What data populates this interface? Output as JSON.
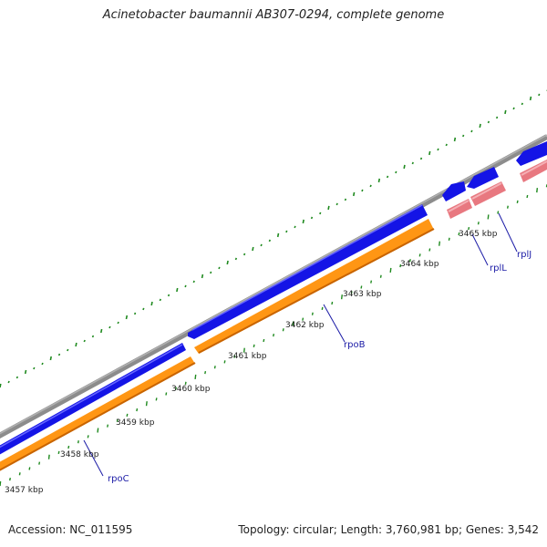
{
  "title": "Acinetobacter baumannii AB307-0294, complete genome",
  "footer": {
    "accession": "Accession: NC_011595",
    "summary": "Topology: circular; Length: 3,760,981 bp; Genes: 3,542"
  },
  "colors": {
    "backbone": "#8c8c8c",
    "forward_cds": "#1414e6",
    "reverse_cds": "#ff9614",
    "reverse_rna": "#e87880",
    "ticks": "#1f8a1f",
    "gene_label": "#1a1aa6"
  },
  "ruler": [
    {
      "label": "3457 kbp",
      "position_kbp": 3457
    },
    {
      "label": "3458 kbp",
      "position_kbp": 3458
    },
    {
      "label": "3459 kbp",
      "position_kbp": 3459
    },
    {
      "label": "3460 kbp",
      "position_kbp": 3460
    },
    {
      "label": "3461 kbp",
      "position_kbp": 3461
    },
    {
      "label": "3462 kbp",
      "position_kbp": 3462
    },
    {
      "label": "3463 kbp",
      "position_kbp": 3463
    },
    {
      "label": "3464 kbp",
      "position_kbp": 3464
    },
    {
      "label": "3465 kbp",
      "position_kbp": 3465
    }
  ],
  "genes": [
    {
      "name": "rpoC",
      "strand": "forward"
    },
    {
      "name": "rpoB",
      "strand": "forward"
    },
    {
      "name": "rplL",
      "strand": "forward"
    },
    {
      "name": "rplJ",
      "strand": "forward"
    }
  ]
}
